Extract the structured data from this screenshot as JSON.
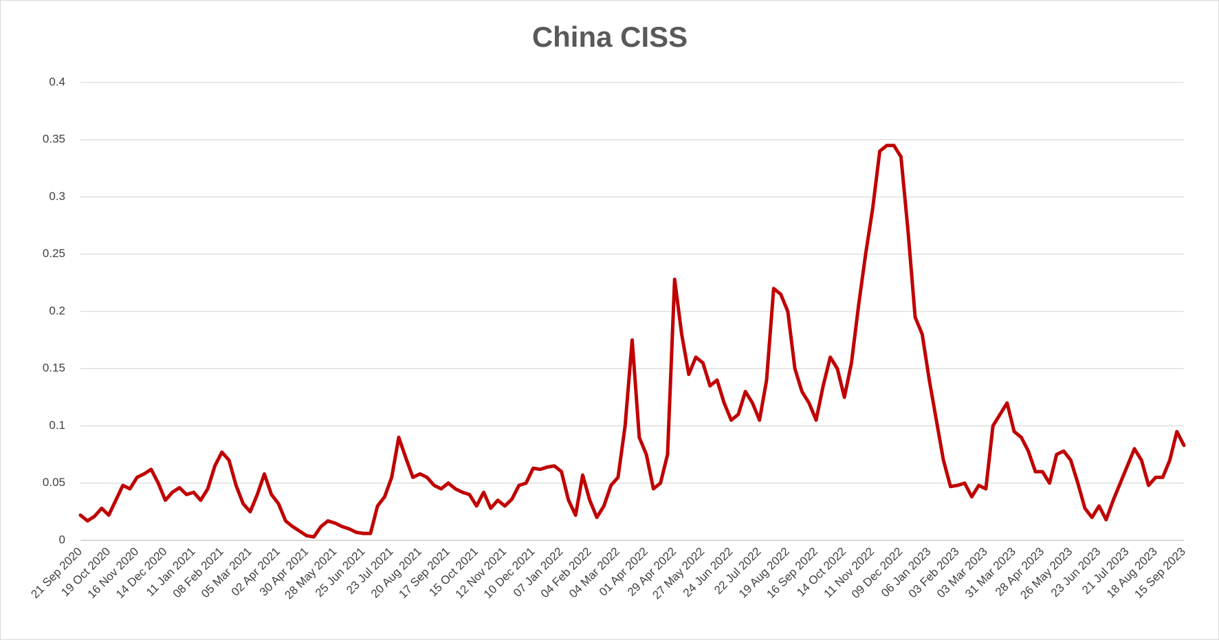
{
  "chart_data": {
    "type": "line",
    "title": "China  CISS",
    "categories": [
      "21 Sep 2020",
      null,
      null,
      null,
      "19 Oct 2020",
      null,
      null,
      null,
      "16 Nov 2020",
      null,
      null,
      null,
      "14 Dec 2020",
      null,
      null,
      null,
      "11 Jan 2021",
      null,
      null,
      null,
      "08 Feb 2021",
      null,
      null,
      null,
      "05 Mar 2021",
      null,
      null,
      null,
      "02 Apr 2021",
      null,
      null,
      null,
      "30 Apr 2021",
      null,
      null,
      null,
      "28 May 2021",
      null,
      null,
      null,
      "25 Jun 2021",
      null,
      null,
      null,
      "23 Jul 2021",
      null,
      null,
      null,
      "20 Aug 2021",
      null,
      null,
      null,
      "17 Sep 2021",
      null,
      null,
      null,
      "15 Oct 2021",
      null,
      null,
      null,
      "12 Nov 2021",
      null,
      null,
      null,
      "10 Dec 2021",
      null,
      null,
      null,
      "07 Jan 2022",
      null,
      null,
      null,
      "04 Feb 2022",
      null,
      null,
      null,
      "04 Mar 2022",
      null,
      null,
      null,
      "01 Apr 2022",
      null,
      null,
      null,
      "29 Apr 2022",
      null,
      null,
      null,
      "27 May 2022",
      null,
      null,
      null,
      "24 Jun 2022",
      null,
      null,
      null,
      "22 Jul 2022",
      null,
      null,
      null,
      "19 Aug 2022",
      null,
      null,
      null,
      "16 Sep 2022",
      null,
      null,
      null,
      "14 Oct 2022",
      null,
      null,
      null,
      "11 Nov 2022",
      null,
      null,
      null,
      "09 Dec 2022",
      null,
      null,
      null,
      "06 Jan 2023",
      null,
      null,
      null,
      "03 Feb 2023",
      null,
      null,
      null,
      "03 Mar 2023",
      null,
      null,
      null,
      "31 Mar 2023",
      null,
      null,
      null,
      "28 Apr 2023",
      null,
      null,
      null,
      "26 May 2023",
      null,
      null,
      null,
      "23 Jun 2023",
      null,
      null,
      null,
      "21 Jul 2023",
      null,
      null,
      null,
      "18 Aug 2023",
      null,
      null,
      null,
      "15 Sep 2023"
    ],
    "values": [
      0.022,
      0.017,
      0.021,
      0.028,
      0.022,
      0.035,
      0.048,
      0.045,
      0.055,
      0.058,
      0.062,
      0.05,
      0.035,
      0.042,
      0.046,
      0.04,
      0.042,
      0.035,
      0.045,
      0.065,
      0.077,
      0.07,
      0.048,
      0.032,
      0.025,
      0.04,
      0.058,
      0.04,
      0.032,
      0.017,
      0.012,
      0.008,
      0.004,
      0.003,
      0.012,
      0.017,
      0.015,
      0.012,
      0.01,
      0.007,
      0.006,
      0.006,
      0.03,
      0.038,
      0.055,
      0.09,
      0.072,
      0.055,
      0.058,
      0.055,
      0.048,
      0.045,
      0.05,
      0.045,
      0.042,
      0.04,
      0.03,
      0.042,
      0.028,
      0.035,
      0.03,
      0.036,
      0.048,
      0.05,
      0.063,
      0.062,
      0.064,
      0.065,
      0.06,
      0.035,
      0.022,
      0.057,
      0.035,
      0.02,
      0.03,
      0.048,
      0.055,
      0.1,
      0.175,
      0.09,
      0.075,
      0.045,
      0.05,
      0.075,
      0.228,
      0.18,
      0.145,
      0.16,
      0.155,
      0.135,
      0.14,
      0.12,
      0.105,
      0.11,
      0.13,
      0.12,
      0.105,
      0.14,
      0.22,
      0.215,
      0.2,
      0.15,
      0.13,
      0.12,
      0.105,
      0.135,
      0.16,
      0.15,
      0.125,
      0.155,
      0.205,
      0.25,
      0.29,
      0.34,
      0.345,
      0.345,
      0.335,
      0.27,
      0.195,
      0.18,
      0.14,
      0.105,
      0.07,
      0.047,
      0.048,
      0.05,
      0.038,
      0.048,
      0.045,
      0.1,
      0.11,
      0.12,
      0.095,
      0.09,
      0.078,
      0.06,
      0.06,
      0.05,
      0.075,
      0.078,
      0.07,
      0.05,
      0.028,
      0.02,
      0.03,
      0.018,
      0.035,
      0.05,
      0.065,
      0.08,
      0.07,
      0.048,
      0.055,
      0.055,
      0.07,
      0.095,
      0.083
    ],
    "color": "#c00000",
    "ylim": [
      0,
      0.4
    ],
    "yticks": [
      0,
      0.05,
      0.1,
      0.15,
      0.2,
      0.25,
      0.3,
      0.35,
      0.4
    ],
    "grid": true
  }
}
